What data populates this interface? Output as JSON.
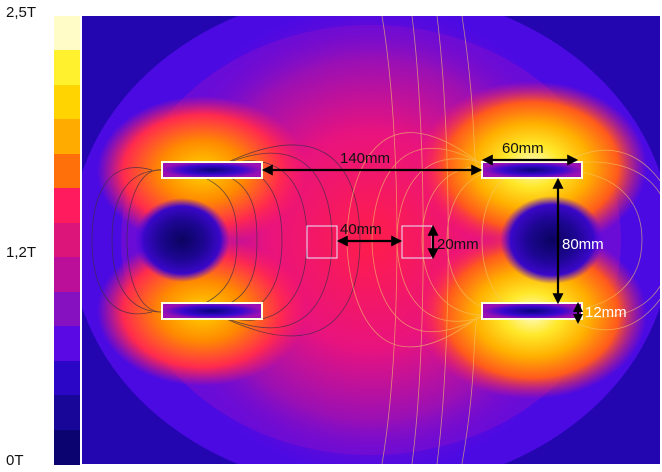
{
  "scale": {
    "max_label": "2,5T",
    "mid_label": "1,2T",
    "min_label": "0T",
    "colors": [
      "#fffcc8",
      "#fff12e",
      "#ffd400",
      "#ffab00",
      "#ff6f0a",
      "#ff1b5e",
      "#dc157a",
      "#bb0f9a",
      "#8611c0",
      "#5a08e4",
      "#2b06c6",
      "#170698",
      "#0a0370"
    ]
  },
  "dimensions": {
    "gap_140": "140mm",
    "magnet_width": "60mm",
    "gap_40": "40mm",
    "height_20": "20mm",
    "gap_80": "80mm",
    "thickness_12": "12mm"
  }
}
